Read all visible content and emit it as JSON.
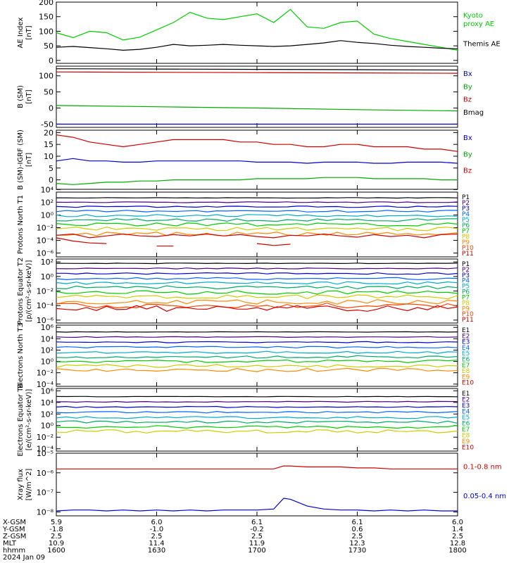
{
  "chart_data": [
    {
      "type": "line",
      "ylabel": "AE Index [nT]",
      "ylim": [
        -10,
        200
      ],
      "yticks": [
        "0",
        "50",
        "100",
        "150",
        "200"
      ],
      "tick_values": [
        0,
        50,
        100,
        150,
        200
      ],
      "x": [
        1600,
        1605,
        1610,
        1615,
        1620,
        1625,
        1630,
        1635,
        1640,
        1645,
        1650,
        1655,
        1700,
        1705,
        1710,
        1715,
        1720,
        1725,
        1730,
        1735,
        1740,
        1745,
        1750,
        1755,
        1800
      ],
      "series": [
        {
          "name": "Kyoto proxy AE",
          "color": "#00cc00",
          "values": [
            95,
            78,
            100,
            95,
            70,
            80,
            105,
            130,
            165,
            145,
            140,
            150,
            160,
            130,
            175,
            115,
            110,
            130,
            135,
            90,
            75,
            65,
            55,
            45,
            35
          ]
        },
        {
          "name": "Themis AE",
          "color": "#000000",
          "values": [
            45,
            48,
            44,
            40,
            35,
            38,
            45,
            55,
            50,
            52,
            55,
            52,
            50,
            48,
            50,
            55,
            60,
            68,
            62,
            58,
            52,
            48,
            45,
            42,
            40
          ]
        }
      ]
    },
    {
      "type": "line",
      "ylabel": "B (SM) [nT]",
      "ylim": [
        -60,
        130
      ],
      "yticks": [
        "-50",
        "0",
        "50",
        "100"
      ],
      "tick_values": [
        -50,
        0,
        50,
        100
      ],
      "x": [
        1600,
        1630,
        1700,
        1730,
        1800
      ],
      "series": [
        {
          "name": "Bx",
          "color": "#0000cc",
          "values": [
            -50,
            -50,
            -50,
            -50,
            -50
          ]
        },
        {
          "name": "By",
          "color": "#00aa00",
          "values": [
            8,
            4,
            0,
            -5,
            -9
          ]
        },
        {
          "name": "Bz",
          "color": "#cc0000",
          "values": [
            112,
            111,
            110,
            109,
            108
          ]
        },
        {
          "name": "Bmag",
          "color": "#000000",
          "values": [
            122,
            121,
            120,
            119,
            118
          ]
        }
      ]
    },
    {
      "type": "line",
      "ylabel": "B (SM)-IGRF (SM) [nT]",
      "ylim": [
        -4,
        21
      ],
      "yticks": [
        "0",
        "5",
        "10",
        "15",
        "20"
      ],
      "tick_values": [
        0,
        5,
        10,
        15,
        20
      ],
      "x": [
        1600,
        1605,
        1610,
        1615,
        1620,
        1625,
        1630,
        1635,
        1640,
        1645,
        1650,
        1655,
        1700,
        1705,
        1710,
        1715,
        1720,
        1725,
        1730,
        1735,
        1740,
        1745,
        1750,
        1755,
        1800
      ],
      "series": [
        {
          "name": "Bx",
          "color": "#0000cc",
          "values": [
            8,
            9,
            8,
            8,
            7.5,
            7.5,
            8,
            8,
            8,
            8,
            8,
            8,
            7.5,
            7.5,
            7.5,
            7,
            7.5,
            7.5,
            7.5,
            7,
            7,
            7.5,
            7.5,
            7.5,
            7
          ]
        },
        {
          "name": "By",
          "color": "#00aa00",
          "values": [
            -1.5,
            -2,
            -1.5,
            -1,
            -1,
            -0.5,
            -0.5,
            0,
            0,
            0,
            0,
            0,
            0.5,
            0.5,
            0.5,
            0.5,
            1,
            1,
            1,
            0.5,
            0.5,
            0.5,
            0.5,
            0,
            0
          ]
        },
        {
          "name": "Bz",
          "color": "#cc0000",
          "values": [
            19,
            18,
            16,
            15,
            14,
            15,
            16,
            17,
            17,
            17,
            17,
            16,
            16,
            15,
            15,
            14,
            14,
            15,
            15,
            14,
            14,
            14,
            13,
            13,
            12
          ]
        }
      ]
    },
    {
      "type": "line",
      "ylabel": "Protons North T1",
      "ylog": true,
      "ylim": [
        -6.6,
        3.6
      ],
      "yticks": [
        "10⁴",
        "10²",
        "10⁰",
        "10⁻²",
        "10⁻⁴",
        "10⁻⁶"
      ],
      "tick_values": [
        4,
        2,
        0,
        -2,
        -4,
        -6
      ],
      "channels": [
        "P1",
        "P2",
        "P3",
        "P4",
        "P5",
        "P6",
        "P7",
        "P8",
        "P9",
        "P10",
        "P11"
      ],
      "colors": [
        "#000000",
        "#4b0082",
        "#0000cc",
        "#0066ff",
        "#00aacc",
        "#00aa66",
        "#00cc00",
        "#cccc00",
        "#ff8800",
        "#ff4400",
        "#cc0000"
      ],
      "levels_log10": [
        2.7,
        2.0,
        1.3,
        0.6,
        -0.1,
        -0.8,
        -1.5,
        -2.2,
        -3.0,
        null,
        null
      ],
      "x": [
        1600,
        1605,
        1610,
        1615,
        1620,
        1625,
        1630,
        1635,
        1640,
        1645,
        1650,
        1655,
        1700,
        1705,
        1710,
        1715,
        1720,
        1725,
        1730,
        1735,
        1740,
        1745,
        1750,
        1755,
        1800
      ],
      "p10": [
        -3.6,
        -4.1,
        -4.4,
        -4.5,
        null,
        null,
        -4.9,
        -4.9,
        null,
        null,
        null,
        null,
        -4.5,
        -4.8,
        -4.6,
        null,
        null,
        null,
        null,
        null,
        null,
        null,
        null,
        null,
        null
      ],
      "p11": [
        -3.2,
        -3.0,
        -3.6,
        -3.3,
        -3.0,
        -3.3,
        -3.4,
        -3.1,
        -3.3,
        -3.0,
        -3.3,
        -3.1,
        -3.4,
        -3.6,
        -3.2,
        -3.3,
        -3.0,
        -3.3,
        -3.5,
        -3.1,
        -3.4,
        -3.2,
        -3.6,
        -3.1,
        -3.0
      ]
    },
    {
      "type": "line",
      "ylabel": "Protons Equator T2 [p/(cm²-s-sr-keV)]",
      "ylog": true,
      "ylim": [
        -6.4,
        2.4
      ],
      "yticks": [
        "10²",
        "10⁰",
        "10⁻²",
        "10⁻⁴",
        "10⁻⁶"
      ],
      "tick_values": [
        2,
        0,
        -2,
        -4,
        -6
      ],
      "channels": [
        "P1",
        "P2",
        "P3",
        "P4",
        "P5",
        "P6",
        "P7",
        "P8",
        "P9",
        "P10",
        "P11"
      ],
      "colors": [
        "#000000",
        "#4b0082",
        "#0000cc",
        "#0066ff",
        "#00aacc",
        "#00aa66",
        "#00cc00",
        "#cccc00",
        "#ff8800",
        "#ff4400",
        "#cc0000"
      ],
      "levels_log10": [
        1.8,
        1.1,
        0.4,
        -0.3,
        -0.9,
        -1.5,
        -2.2,
        -2.8,
        -3.5,
        -4.0,
        -4.4
      ]
    },
    {
      "type": "line",
      "ylabel": "Electrons North T3",
      "ylog": true,
      "ylim": [
        -4.4,
        6.4
      ],
      "yticks": [
        "10⁶",
        "10⁴",
        "10²",
        "10⁰",
        "10⁻²",
        "10⁻⁴"
      ],
      "tick_values": [
        6,
        4,
        2,
        0,
        -2,
        -4
      ],
      "channels": [
        "E1",
        "E2",
        "E3",
        "E4",
        "E5",
        "E6",
        "E7",
        "E8",
        "E9",
        "E10"
      ],
      "colors": [
        "#000000",
        "#4b0082",
        "#0000cc",
        "#0066ff",
        "#00aacc",
        "#00aa66",
        "#00cc00",
        "#cccc00",
        "#ff8800",
        "#cc0000"
      ],
      "levels_log10": [
        5.2,
        4.3,
        3.4,
        2.5,
        1.6,
        0.8,
        0.0,
        -0.8,
        -1.5,
        null
      ]
    },
    {
      "type": "line",
      "ylabel": "Electrons Equator T4 [e/(cm²-s-sr-keV)]",
      "ylog": true,
      "ylim": [
        -4.4,
        6.4
      ],
      "yticks": [
        "10⁶",
        "10⁴",
        "10²",
        "10⁰",
        "10⁻²",
        "10⁻⁴"
      ],
      "tick_values": [
        6,
        4,
        2,
        0,
        -2,
        -4
      ],
      "channels": [
        "E1",
        "E2",
        "E3",
        "E4",
        "E5",
        "E6",
        "E7",
        "E8",
        "E9",
        "E10"
      ],
      "colors": [
        "#000000",
        "#4b0082",
        "#0000cc",
        "#0066ff",
        "#00aacc",
        "#00aa66",
        "#00cc00",
        "#cccc00",
        "#ff8800",
        "#cc0000"
      ],
      "levels_log10": [
        5.0,
        4.1,
        3.2,
        2.3,
        1.4,
        0.6,
        -0.2,
        -1.0,
        null,
        null
      ]
    },
    {
      "type": "line",
      "ylabel": "Xray flux [W/m^2]",
      "ylog": true,
      "ylim": [
        -8.2,
        -5
      ],
      "yticks": [
        "10⁻⁵",
        "10⁻⁶",
        "10⁻⁷",
        "10⁻⁸"
      ],
      "tick_values": [
        -5,
        -6,
        -7,
        -8
      ],
      "x": [
        1600,
        1605,
        1610,
        1615,
        1620,
        1625,
        1630,
        1635,
        1640,
        1645,
        1650,
        1655,
        1700,
        1705,
        1708,
        1710,
        1715,
        1720,
        1725,
        1730,
        1735,
        1740,
        1745,
        1750,
        1755,
        1800
      ],
      "series": [
        {
          "name": "0.1-0.8 nm",
          "color": "#cc0000",
          "values": [
            -5.8,
            -5.8,
            -5.8,
            -5.8,
            -5.8,
            -5.8,
            -5.8,
            -5.8,
            -5.8,
            -5.8,
            -5.8,
            -5.8,
            -5.8,
            -5.8,
            -5.65,
            -5.65,
            -5.7,
            -5.7,
            -5.7,
            -5.75,
            -5.75,
            -5.8,
            -5.8,
            -5.8,
            -5.8,
            -5.8
          ]
        },
        {
          "name": "0.05-0.4 nm",
          "color": "#0000cc",
          "values": [
            -7.95,
            -7.9,
            -7.9,
            -7.95,
            -7.9,
            -7.95,
            -7.9,
            -7.95,
            -7.9,
            -7.95,
            -7.9,
            -7.9,
            -7.9,
            -7.85,
            -7.3,
            -7.35,
            -7.7,
            -7.85,
            -7.9,
            -7.9,
            -7.95,
            -7.9,
            -7.95,
            -7.9,
            -7.95,
            -7.95
          ]
        }
      ]
    }
  ],
  "x_axis": {
    "xlim": [
      1600,
      1800
    ],
    "row_labels": [
      "X-GSM",
      "Y-GSM",
      "Z-GSM",
      "MLT",
      "hhmm",
      "2024 Jan 09"
    ],
    "columns": [
      {
        "hhmm": 1600,
        "rows": [
          "5.9",
          "-1.8",
          "2.5",
          "10.9",
          "1600"
        ]
      },
      {
        "hhmm": 1630,
        "rows": [
          "6.0",
          "-1.0",
          "2.5",
          "11.4",
          "1630"
        ]
      },
      {
        "hhmm": 1700,
        "rows": [
          "6.1",
          "-0.2",
          "2.5",
          "11.9",
          "1700"
        ]
      },
      {
        "hhmm": 1730,
        "rows": [
          "6.1",
          "0.6",
          "2.5",
          "12.3",
          "1730"
        ]
      },
      {
        "hhmm": 1800,
        "rows": [
          "6.0",
          "1.4",
          "2.5",
          "12.8",
          "1800"
        ]
      }
    ]
  }
}
